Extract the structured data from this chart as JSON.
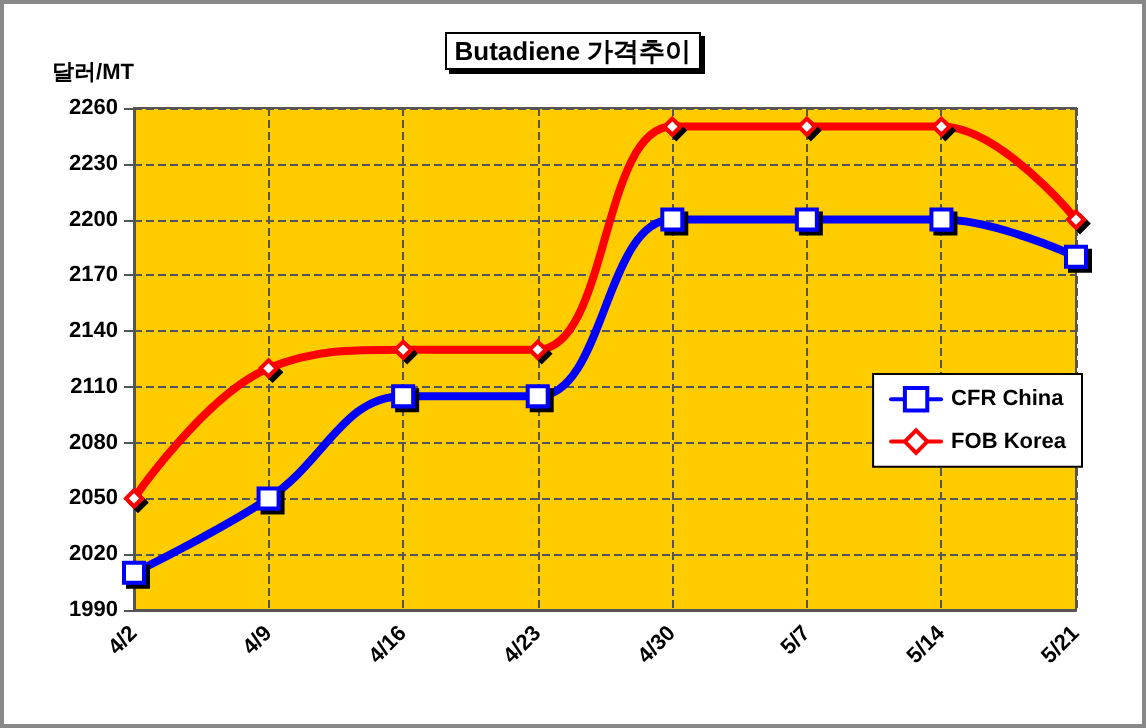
{
  "chart_data": {
    "type": "line",
    "title": "Butadiene 가격추이",
    "ylabel": "달러/MT",
    "categories": [
      "4/2",
      "4/9",
      "4/16",
      "4/23",
      "4/30",
      "5/7",
      "5/14",
      "5/21"
    ],
    "series": [
      {
        "name": "CFR China",
        "color": "#0000ff",
        "marker": "square",
        "values": [
          2010,
          2050,
          2105,
          2105,
          2200,
          2200,
          2200,
          2180
        ]
      },
      {
        "name": "FOB Korea",
        "color": "#ff0000",
        "marker": "diamond",
        "values": [
          2050,
          2120,
          2130,
          2130,
          2250,
          2250,
          2250,
          2200
        ]
      }
    ],
    "ylim": [
      1990,
      2260
    ],
    "yticks": [
      1990,
      2020,
      2050,
      2080,
      2110,
      2140,
      2170,
      2200,
      2230,
      2260
    ],
    "grid": true,
    "legend": "right",
    "line_style": "solid"
  }
}
